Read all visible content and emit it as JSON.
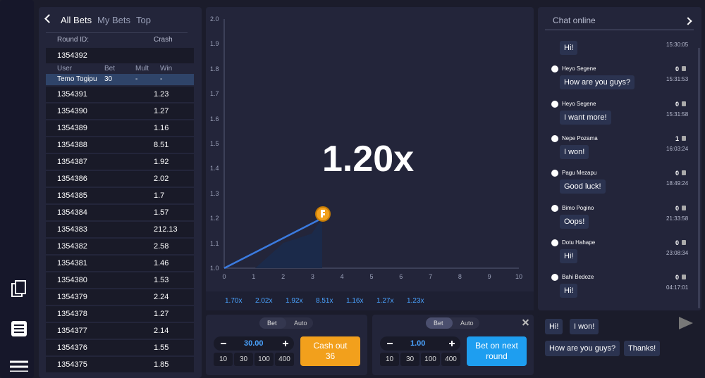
{
  "tabs": [
    "All Bets",
    "My Bets",
    "Top"
  ],
  "bets_header": {
    "round_id": "Round ID:",
    "crash": "Crash"
  },
  "current_round": {
    "id": "1354392",
    "columns": [
      "User",
      "Bet",
      "Mult",
      "Win"
    ],
    "row": [
      "Temo Togipu",
      "30",
      "-",
      "-"
    ]
  },
  "rounds": [
    [
      "1354391",
      "1.23"
    ],
    [
      "1354390",
      "1.27"
    ],
    [
      "1354389",
      "1.16"
    ],
    [
      "1354388",
      "8.51"
    ],
    [
      "1354387",
      "1.92"
    ],
    [
      "1354386",
      "2.02"
    ],
    [
      "1354385",
      "1.7"
    ],
    [
      "1354384",
      "1.57"
    ],
    [
      "1354383",
      "212.13"
    ],
    [
      "1354382",
      "2.58"
    ],
    [
      "1354381",
      "1.46"
    ],
    [
      "1354380",
      "1.53"
    ],
    [
      "1354379",
      "2.24"
    ],
    [
      "1354378",
      "1.27"
    ],
    [
      "1354377",
      "2.14"
    ],
    [
      "1354376",
      "1.55"
    ],
    [
      "1354375",
      "1.85"
    ]
  ],
  "game": {
    "multiplier": "1.20x",
    "yticks": [
      "2.0",
      "1.9",
      "1.8",
      "1.7",
      "1.6",
      "1.5",
      "1.4",
      "1.3",
      "1.2",
      "1.1",
      "1.0"
    ],
    "xticks": [
      "0",
      "1",
      "2",
      "3",
      "4",
      "5",
      "6",
      "7",
      "8",
      "9",
      "10"
    ],
    "history": [
      "1.70x",
      "2.02x",
      "1.92x",
      "8.51x",
      "1.16x",
      "1.27x",
      "1.23x"
    ]
  },
  "bet_panels": [
    {
      "tabs": [
        "Bet",
        "Auto"
      ],
      "amount": "30.00",
      "quick": [
        "10",
        "30",
        "100",
        "400"
      ],
      "button": [
        "Cash out",
        "36"
      ]
    },
    {
      "tabs": [
        "Bet",
        "Auto"
      ],
      "amount": "1.00",
      "quick": [
        "10",
        "30",
        "100",
        "400"
      ],
      "button": [
        "Bet on next",
        "round"
      ]
    }
  ],
  "chat": {
    "title": "Chat online",
    "messages": [
      {
        "time": "15:30:05",
        "text": "Hi!"
      },
      {
        "name": "Heyo Segene",
        "likes": "0",
        "time": "15:31:53",
        "text": "How are you guys?"
      },
      {
        "name": "Heyo Segene",
        "likes": "0",
        "time": "15:31:58",
        "text": "I want more!"
      },
      {
        "name": "Nepe Pozama",
        "likes": "1",
        "time": "16:03:24",
        "text": "I won!"
      },
      {
        "name": "Pagu Mezapu",
        "likes": "0",
        "time": "18:49:24",
        "text": "Good luck!"
      },
      {
        "name": "Bimo Pogino",
        "likes": "0",
        "time": "21:33:58",
        "text": "Oops!"
      },
      {
        "name": "Dotu Hahape",
        "likes": "0",
        "time": "23:08:34",
        "text": "Hi!"
      },
      {
        "name": "Bahi Bedoze",
        "likes": "0",
        "time": "04:17:01",
        "text": "Hi!"
      }
    ],
    "quick_replies": [
      "Hi!",
      "I won!",
      "How are you guys?",
      "Thanks!"
    ]
  }
}
